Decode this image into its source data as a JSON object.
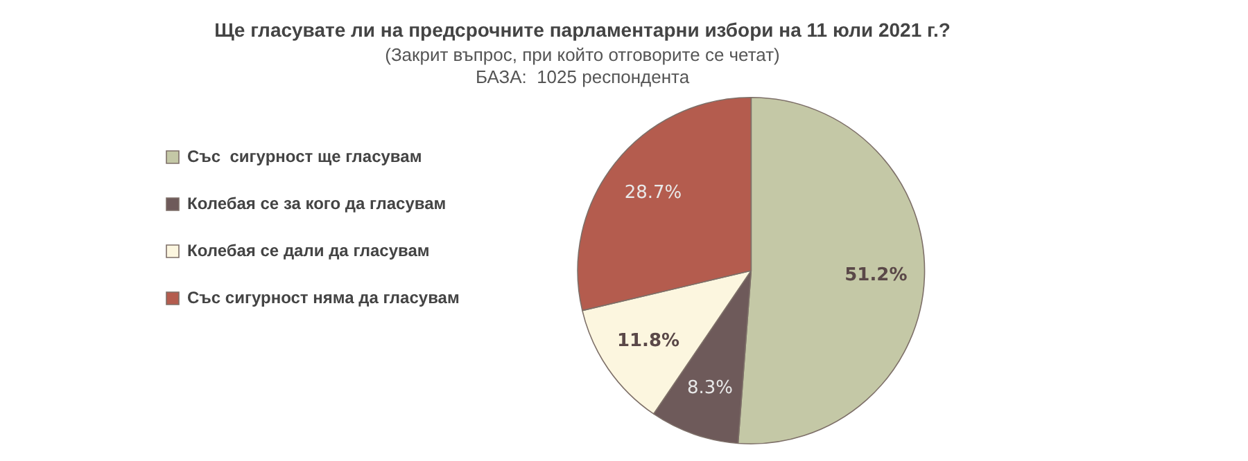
{
  "chart_data": {
    "type": "pie",
    "title": "Ще гласувате ли на предсрочните парламентарни избори на 11 юли 2021 г.?",
    "subtitle": "(Закрит въпрос, при който отговорите се четат)",
    "annotations": [
      "БАЗА:  1025 респондента"
    ],
    "categories": [
      "Със  сигурност ще гласувам",
      "Колебая се за кого да гласувам",
      "Колебая се дали да гласувам",
      "Със сигурност няма да гласувам"
    ],
    "values": [
      51.2,
      8.3,
      11.8,
      28.7
    ],
    "value_labels": [
      "51.2%",
      "8.3%",
      "11.8%",
      "28.7%"
    ],
    "colors": [
      "#c4c8a6",
      "#6e5a5a",
      "#fcf6df",
      "#b45c4e"
    ],
    "legend": "left"
  }
}
